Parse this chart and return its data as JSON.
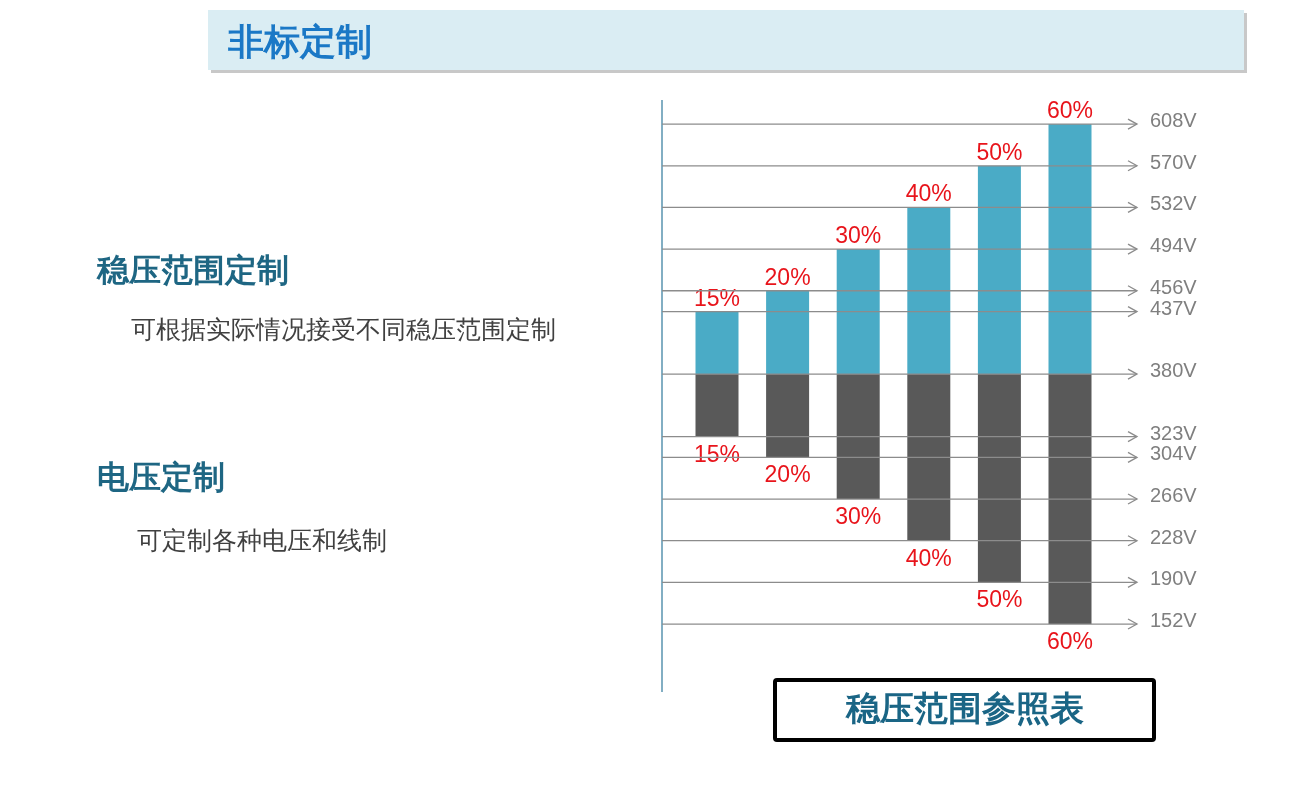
{
  "chart_data": [
    {
      "type": "other",
      "title": "非标定制",
      "annotations": [
        "稳压范围定制",
        "可根据实际情况接受不同稳压范围定制",
        "电压定制",
        "可定制各种电压和线制"
      ]
    },
    {
      "type": "bar",
      "title": "稳压范围参照表",
      "categories": [
        null,
        null,
        null,
        null,
        null,
        null
      ],
      "series": [
        {
          "color": "#4aabc6",
          "base": [
            380,
            380,
            380,
            380,
            380,
            380
          ],
          "values": [
            57,
            76,
            114,
            152,
            190,
            228
          ]
        },
        {
          "color": "#595959",
          "base": [
            323,
            304,
            266,
            228,
            190,
            152
          ],
          "values": [
            57,
            76,
            114,
            152,
            190,
            228
          ]
        }
      ],
      "annotations": [
        {
          "text": "15%",
          "y": 437
        },
        {
          "text": "20%",
          "y": 456
        },
        {
          "text": "30%",
          "y": 494
        },
        {
          "text": "40%",
          "y": 532
        },
        {
          "text": "50%",
          "y": 570
        },
        {
          "text": "60%",
          "y": 608
        },
        {
          "text": "15%",
          "y": 323
        },
        {
          "text": "20%",
          "y": 304
        },
        {
          "text": "30%",
          "y": 266
        },
        {
          "text": "40%",
          "y": 228
        },
        {
          "text": "50%",
          "y": 190
        },
        {
          "text": "60%",
          "y": 152
        }
      ],
      "ylim": [
        90,
        630
      ],
      "yticks": [
        {
          "value": 608,
          "label": "608V"
        },
        {
          "value": 570,
          "label": "570V"
        },
        {
          "value": 532,
          "label": "532V"
        },
        {
          "value": 494,
          "label": "494V"
        },
        {
          "value": 456,
          "label": "456V"
        },
        {
          "value": 437,
          "label": "437V"
        },
        {
          "value": 380,
          "label": "380V"
        },
        {
          "value": 323,
          "label": "323V"
        },
        {
          "value": 304,
          "label": "304V"
        },
        {
          "value": 266,
          "label": "266V"
        },
        {
          "value": 228,
          "label": "228V"
        },
        {
          "value": 190,
          "label": "190V"
        },
        {
          "value": 152,
          "label": "152V"
        }
      ],
      "grid": "y"
    }
  ]
}
